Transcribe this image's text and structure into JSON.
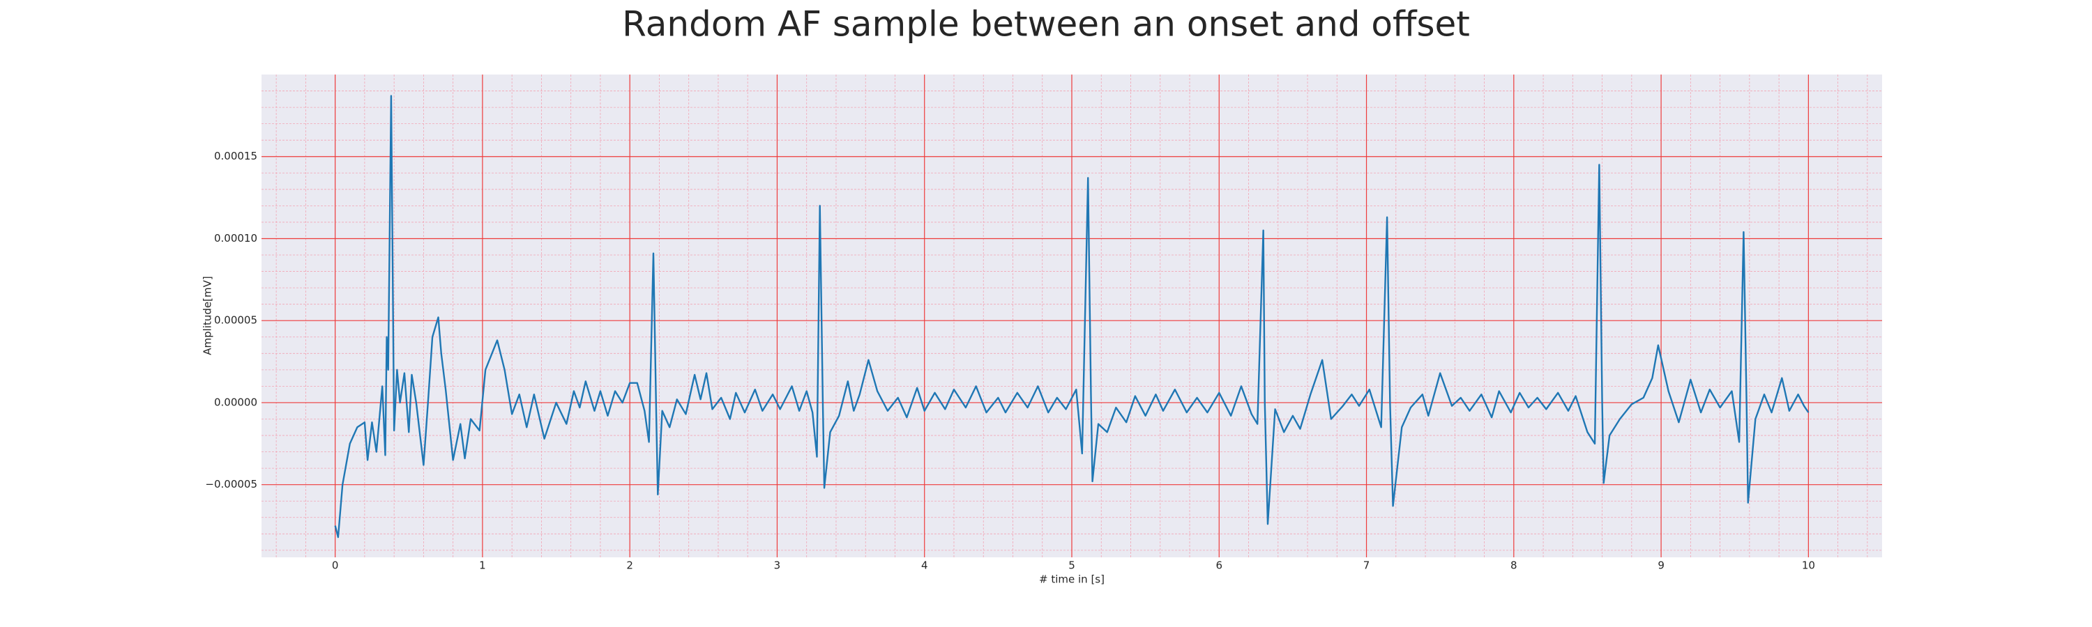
{
  "chart_data": {
    "type": "line",
    "title": "Random AF sample between an onset and offset",
    "x_label": "# time in [s]",
    "y_label": "Amplitude[mV]",
    "xlim": [
      -0.5,
      10.5
    ],
    "ylim": [
      -9.43e-05,
      0.0002
    ],
    "xticks": [
      0,
      1,
      2,
      3,
      4,
      5,
      6,
      7,
      8,
      9,
      10
    ],
    "yticks": [
      {
        "value": -5e-05,
        "label": "−0.00005"
      },
      {
        "value": 0,
        "label": "0.00000"
      },
      {
        "value": 5e-05,
        "label": "0.00005"
      },
      {
        "value": 0.0001,
        "label": "0.00010"
      },
      {
        "value": 0.00015,
        "label": "0.00015"
      }
    ],
    "grid": true,
    "minor_grid": true,
    "grid_color": "#ee3b3b",
    "minor_grid_color": "#f2a5b5",
    "background": "#eaeaf2",
    "x": [
      0,
      0.02,
      0.05,
      0.1,
      0.15,
      0.2,
      0.22,
      0.25,
      0.28,
      0.32,
      0.34,
      0.35,
      0.36,
      0.38,
      0.4,
      0.42,
      0.44,
      0.47,
      0.5,
      0.52,
      0.55,
      0.6,
      0.63,
      0.66,
      0.7,
      0.72,
      0.75,
      0.8,
      0.85,
      0.88,
      0.92,
      0.98,
      1.02,
      1.1,
      1.15,
      1.2,
      1.25,
      1.3,
      1.35,
      1.42,
      1.5,
      1.57,
      1.62,
      1.66,
      1.7,
      1.76,
      1.8,
      1.85,
      1.9,
      1.95,
      2.0,
      2.05,
      2.1,
      2.13,
      2.16,
      2.18,
      2.19,
      2.22,
      2.27,
      2.32,
      2.38,
      2.44,
      2.48,
      2.52,
      2.56,
      2.62,
      2.68,
      2.72,
      2.78,
      2.85,
      2.9,
      2.97,
      3.02,
      3.1,
      3.15,
      3.2,
      3.24,
      3.27,
      3.29,
      3.31,
      3.32,
      3.36,
      3.42,
      3.48,
      3.52,
      3.56,
      3.62,
      3.68,
      3.75,
      3.82,
      3.88,
      3.95,
      4.0,
      4.07,
      4.14,
      4.2,
      4.28,
      4.35,
      4.42,
      4.5,
      4.55,
      4.63,
      4.7,
      4.77,
      4.84,
      4.9,
      4.96,
      5.03,
      5.07,
      5.11,
      5.13,
      5.14,
      5.18,
      5.24,
      5.3,
      5.37,
      5.43,
      5.5,
      5.57,
      5.62,
      5.7,
      5.78,
      5.85,
      5.92,
      6.0,
      6.08,
      6.15,
      6.22,
      6.26,
      6.3,
      6.31,
      6.33,
      6.38,
      6.44,
      6.5,
      6.55,
      6.62,
      6.7,
      6.76,
      6.84,
      6.9,
      6.95,
      7.02,
      7.1,
      7.14,
      7.16,
      7.18,
      7.24,
      7.3,
      7.38,
      7.42,
      7.5,
      7.58,
      7.64,
      7.7,
      7.78,
      7.85,
      7.9,
      7.98,
      8.04,
      8.1,
      8.16,
      8.22,
      8.3,
      8.37,
      8.42,
      8.5,
      8.55,
      8.58,
      8.6,
      8.61,
      8.65,
      8.72,
      8.8,
      8.88,
      8.94,
      8.98,
      9.05,
      9.12,
      9.2,
      9.27,
      9.33,
      9.4,
      9.48,
      9.53,
      9.56,
      9.58,
      9.59,
      9.64,
      9.7,
      9.75,
      9.82,
      9.87,
      9.93,
      9.97,
      10.0
    ],
    "series": [
      {
        "color": "#1f77b4",
        "values": [
          -7.5e-05,
          -8.2e-05,
          -5e-05,
          -2.5e-05,
          -1.5e-05,
          -1.2e-05,
          -3.5e-05,
          -1.2e-05,
          -3e-05,
          1e-05,
          -3.2e-05,
          4e-05,
          2e-05,
          0.000187,
          -1.7e-05,
          2e-05,
          0,
          1.8e-05,
          -1.8e-05,
          1.7e-05,
          0,
          -3.8e-05,
          0,
          4e-05,
          5.2e-05,
          3e-05,
          8e-06,
          -3.5e-05,
          -1.3e-05,
          -3.4e-05,
          -1e-05,
          -1.7e-05,
          2e-05,
          3.8e-05,
          2e-05,
          -7e-06,
          5e-06,
          -1.5e-05,
          5e-06,
          -2.2e-05,
          0,
          -1.3e-05,
          7e-06,
          -3e-06,
          1.3e-05,
          -5e-06,
          7e-06,
          -8e-06,
          7e-06,
          0,
          1.2e-05,
          1.2e-05,
          -5e-06,
          -2.4e-05,
          9.1e-05,
          -1e-05,
          -5.6e-05,
          -5e-06,
          -1.5e-05,
          2e-06,
          -7e-06,
          1.7e-05,
          2e-06,
          1.8e-05,
          -4e-06,
          3e-06,
          -1e-05,
          6e-06,
          -6e-06,
          8e-06,
          -5e-06,
          5e-06,
          -4e-06,
          1e-05,
          -5e-06,
          7e-06,
          -6e-06,
          -3.3e-05,
          0.00012,
          0,
          -5.2e-05,
          -1.8e-05,
          -8e-06,
          1.3e-05,
          -5e-06,
          5e-06,
          2.6e-05,
          7e-06,
          -5e-06,
          3e-06,
          -9e-06,
          9e-06,
          -5e-06,
          6e-06,
          -4e-06,
          8e-06,
          -3e-06,
          1e-05,
          -6e-06,
          3e-06,
          -6e-06,
          6e-06,
          -3e-06,
          1e-05,
          -6e-06,
          3e-06,
          -4e-06,
          8e-06,
          -3.1e-05,
          0.000137,
          5e-06,
          -4.8e-05,
          -1.3e-05,
          -1.8e-05,
          -3e-06,
          -1.2e-05,
          4e-06,
          -8e-06,
          5e-06,
          -5e-06,
          8e-06,
          -6e-06,
          3e-06,
          -6e-06,
          6e-06,
          -8e-06,
          1e-05,
          -7e-06,
          -1.3e-05,
          0.000105,
          0,
          -7.4e-05,
          -4e-06,
          -1.8e-05,
          -8e-06,
          -1.6e-05,
          5e-06,
          2.6e-05,
          -1e-05,
          -2e-06,
          5e-06,
          -2e-06,
          8e-06,
          -1.5e-05,
          0.000113,
          0,
          -6.3e-05,
          -1.5e-05,
          -3e-06,
          5e-06,
          -8e-06,
          1.8e-05,
          -2e-06,
          3e-06,
          -5e-06,
          5e-06,
          -9e-06,
          7e-06,
          -6e-06,
          6e-06,
          -3e-06,
          3e-06,
          -4e-06,
          6e-06,
          -5e-06,
          4e-06,
          -1.8e-05,
          -2.5e-05,
          0.000145,
          0,
          -4.9e-05,
          -2e-05,
          -1e-05,
          -1e-06,
          3e-06,
          1.5e-05,
          3.5e-05,
          7e-06,
          -1.2e-05,
          1.4e-05,
          -6e-06,
          8e-06,
          -3e-06,
          7e-06,
          -2.4e-05,
          0.000104,
          0,
          -6.1e-05,
          -1e-05,
          5e-06,
          -6e-06,
          1.5e-05,
          -5e-06,
          5e-06,
          -2e-06,
          -6e-06
        ]
      }
    ]
  }
}
